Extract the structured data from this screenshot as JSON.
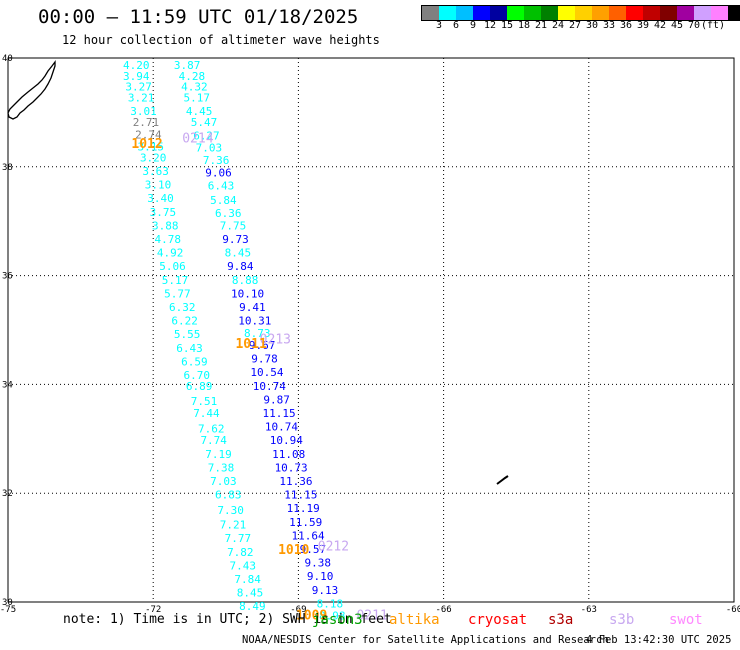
{
  "header": {
    "title": "00:00 – 11:59 UTC 01/18/2025",
    "subtitle": "12 hour collection of altimeter wave heights"
  },
  "colorbar": {
    "colors": [
      "#808080",
      "#00ffff",
      "#00bfff",
      "#0000ff",
      "#0000a0",
      "#00ff00",
      "#00c000",
      "#008000",
      "#ffff00",
      "#ffd000",
      "#ffa000",
      "#ff6000",
      "#ff0000",
      "#c00000",
      "#800000",
      "#a000a0",
      "#d0a0ff",
      "#ff80ff",
      "#000000"
    ],
    "labels": [
      "3",
      "6",
      "9",
      "12",
      "15",
      "18",
      "21",
      "24",
      "27",
      "30",
      "33",
      "36",
      "39",
      "42",
      "45",
      "70"
    ],
    "unit": "(ft)"
  },
  "map": {
    "lon_ticks": [
      "-75",
      "-72",
      "-69",
      "-66",
      "-63",
      "-60"
    ],
    "lat_ticks": [
      "40",
      "38",
      "36",
      "34",
      "32",
      "30"
    ]
  },
  "chart_data": {
    "type": "scatter",
    "lon_range": [
      -75,
      -60
    ],
    "lat_range": [
      30,
      40
    ],
    "units": "ft",
    "tracks": [
      {
        "name": "track-west",
        "points": [
          {
            "lon": -72.35,
            "lat": 39.8,
            "v": "4.20"
          },
          {
            "lon": -72.35,
            "lat": 39.6,
            "v": "3.94"
          },
          {
            "lon": -72.3,
            "lat": 39.4,
            "v": "3.27"
          },
          {
            "lon": -72.25,
            "lat": 39.2,
            "v": "3.21"
          },
          {
            "lon": -72.2,
            "lat": 38.95,
            "v": "3.01"
          },
          {
            "lon": -72.15,
            "lat": 38.75,
            "v": "2.71"
          },
          {
            "lon": -72.1,
            "lat": 38.52,
            "v": "2.74"
          },
          {
            "lon": -72.05,
            "lat": 38.3,
            "v": "3.15"
          },
          {
            "lon": -72.0,
            "lat": 38.1,
            "v": "3.20"
          },
          {
            "lon": -71.95,
            "lat": 37.85,
            "v": "3.63"
          },
          {
            "lon": -71.9,
            "lat": 37.6,
            "v": "3.10"
          },
          {
            "lon": -71.85,
            "lat": 37.35,
            "v": "3.40"
          },
          {
            "lon": -71.8,
            "lat": 37.1,
            "v": "3.75"
          },
          {
            "lon": -71.75,
            "lat": 36.85,
            "v": "3.88"
          },
          {
            "lon": -71.7,
            "lat": 36.6,
            "v": "4.78"
          },
          {
            "lon": -71.65,
            "lat": 36.35,
            "v": "4.92"
          },
          {
            "lon": -71.6,
            "lat": 36.1,
            "v": "5.06"
          },
          {
            "lon": -71.55,
            "lat": 35.85,
            "v": "5.17"
          },
          {
            "lon": -71.5,
            "lat": 35.6,
            "v": "5.77"
          },
          {
            "lon": -71.4,
            "lat": 35.35,
            "v": "6.32"
          },
          {
            "lon": -71.35,
            "lat": 35.1,
            "v": "6.22"
          },
          {
            "lon": -71.3,
            "lat": 34.85,
            "v": "5.55"
          },
          {
            "lon": -71.25,
            "lat": 34.6,
            "v": "6.43"
          },
          {
            "lon": -71.15,
            "lat": 34.35,
            "v": "6.59"
          },
          {
            "lon": -71.1,
            "lat": 34.1,
            "v": "6.70"
          },
          {
            "lon": -71.05,
            "lat": 33.9,
            "v": "6.89"
          },
          {
            "lon": -70.95,
            "lat": 33.62,
            "v": "7.51"
          },
          {
            "lon": -70.9,
            "lat": 33.4,
            "v": "7.44"
          },
          {
            "lon": -70.8,
            "lat": 33.12,
            "v": "7.62"
          },
          {
            "lon": -70.75,
            "lat": 32.9,
            "v": "7.74"
          },
          {
            "lon": -70.65,
            "lat": 32.65,
            "v": "7.19"
          },
          {
            "lon": -70.6,
            "lat": 32.4,
            "v": "7.38"
          },
          {
            "lon": -70.55,
            "lat": 32.15,
            "v": "7.03"
          },
          {
            "lon": -70.45,
            "lat": 31.9,
            "v": "6.83"
          },
          {
            "lon": -70.4,
            "lat": 31.62,
            "v": "7.30"
          },
          {
            "lon": -70.35,
            "lat": 31.35,
            "v": "7.21"
          },
          {
            "lon": -70.25,
            "lat": 31.1,
            "v": "7.77"
          },
          {
            "lon": -70.2,
            "lat": 30.85,
            "v": "7.82"
          },
          {
            "lon": -70.15,
            "lat": 30.6,
            "v": "7.43"
          },
          {
            "lon": -70.05,
            "lat": 30.35,
            "v": "7.84"
          },
          {
            "lon": -70.0,
            "lat": 30.1,
            "v": "8.45"
          },
          {
            "lon": -69.95,
            "lat": 29.85,
            "v": "8.49"
          }
        ]
      },
      {
        "name": "track-east",
        "points": [
          {
            "lon": -71.3,
            "lat": 39.8,
            "v": "3.87"
          },
          {
            "lon": -71.2,
            "lat": 39.6,
            "v": "4.28"
          },
          {
            "lon": -71.15,
            "lat": 39.4,
            "v": "4.32"
          },
          {
            "lon": -71.1,
            "lat": 39.2,
            "v": "5.17"
          },
          {
            "lon": -71.05,
            "lat": 38.95,
            "v": "4.45"
          },
          {
            "lon": -70.95,
            "lat": 38.75,
            "v": "5.47"
          },
          {
            "lon": -70.9,
            "lat": 38.5,
            "v": "6.27"
          },
          {
            "lon": -70.85,
            "lat": 38.28,
            "v": "7.03"
          },
          {
            "lon": -70.7,
            "lat": 38.05,
            "v": "7.36"
          },
          {
            "lon": -70.65,
            "lat": 37.82,
            "v": "9.06"
          },
          {
            "lon": -70.6,
            "lat": 37.58,
            "v": "6.43"
          },
          {
            "lon": -70.55,
            "lat": 37.32,
            "v": "5.84"
          },
          {
            "lon": -70.45,
            "lat": 37.08,
            "v": "6.36"
          },
          {
            "lon": -70.35,
            "lat": 36.85,
            "v": "7.75"
          },
          {
            "lon": -70.3,
            "lat": 36.6,
            "v": "9.73"
          },
          {
            "lon": -70.25,
            "lat": 36.35,
            "v": "8.45"
          },
          {
            "lon": -70.2,
            "lat": 36.1,
            "v": "9.84"
          },
          {
            "lon": -70.1,
            "lat": 35.85,
            "v": "8.88"
          },
          {
            "lon": -70.05,
            "lat": 35.6,
            "v": "10.10"
          },
          {
            "lon": -69.95,
            "lat": 35.35,
            "v": "9.41"
          },
          {
            "lon": -69.9,
            "lat": 35.1,
            "v": "10.31"
          },
          {
            "lon": -69.85,
            "lat": 34.87,
            "v": "8.73"
          },
          {
            "lon": -69.75,
            "lat": 34.65,
            "v": "9.67"
          },
          {
            "lon": -69.7,
            "lat": 34.4,
            "v": "9.78"
          },
          {
            "lon": -69.65,
            "lat": 34.15,
            "v": "10.54"
          },
          {
            "lon": -69.6,
            "lat": 33.9,
            "v": "10.74"
          },
          {
            "lon": -69.45,
            "lat": 33.65,
            "v": "9.87"
          },
          {
            "lon": -69.4,
            "lat": 33.4,
            "v": "11.15"
          },
          {
            "lon": -69.35,
            "lat": 33.15,
            "v": "10.74"
          },
          {
            "lon": -69.25,
            "lat": 32.9,
            "v": "10.94"
          },
          {
            "lon": -69.2,
            "lat": 32.65,
            "v": "11.08"
          },
          {
            "lon": -69.15,
            "lat": 32.4,
            "v": "10.73"
          },
          {
            "lon": -69.05,
            "lat": 32.15,
            "v": "11.36"
          },
          {
            "lon": -68.95,
            "lat": 31.9,
            "v": "11.15"
          },
          {
            "lon": -68.9,
            "lat": 31.65,
            "v": "11.19"
          },
          {
            "lon": -68.85,
            "lat": 31.4,
            "v": "11.59"
          },
          {
            "lon": -68.8,
            "lat": 31.15,
            "v": "11.64"
          },
          {
            "lon": -68.7,
            "lat": 30.9,
            "v": "9.57"
          },
          {
            "lon": -68.6,
            "lat": 30.65,
            "v": "9.38"
          },
          {
            "lon": -68.55,
            "lat": 30.4,
            "v": "9.10"
          },
          {
            "lon": -68.45,
            "lat": 30.15,
            "v": "9.13"
          },
          {
            "lon": -68.35,
            "lat": 29.9,
            "v": "8.18"
          },
          {
            "lon": -68.3,
            "lat": 29.68,
            "v": "8.98"
          }
        ]
      }
    ],
    "time_labels": [
      {
        "lon": -71.4,
        "lat": 38.45,
        "v": "0214"
      },
      {
        "lon": -69.8,
        "lat": 34.75,
        "v": "0213"
      },
      {
        "lon": -68.6,
        "lat": 30.95,
        "v": "0212"
      },
      {
        "lon": -67.8,
        "lat": 29.68,
        "v": "0211"
      }
    ],
    "cycle_labels": [
      {
        "lon": -72.45,
        "lat": 38.35,
        "v": "1012"
      },
      {
        "lon": -70.3,
        "lat": 34.67,
        "v": "1011"
      },
      {
        "lon": -69.42,
        "lat": 30.88,
        "v": "1010"
      },
      {
        "lon": -69.05,
        "lat": 29.68,
        "v": "1009"
      }
    ]
  },
  "legend": {
    "note": "note: 1) Time is in UTC; 2) SWH is in feet",
    "satellites": [
      {
        "name": "jason3",
        "color": "#00a000"
      },
      {
        "name": "altika",
        "color": "#ff9900"
      },
      {
        "name": "cryosat",
        "color": "#ff0000"
      },
      {
        "name": "s3a",
        "color": "#b00000"
      },
      {
        "name": "s3b",
        "color": "#c8a8f0"
      },
      {
        "name": "swot",
        "color": "#ff88ff"
      }
    ]
  },
  "footer": {
    "credit": "NOAA/NESDIS Center for Satellite Applications and Research",
    "timestamp": "4 Feb 13:42:30 UTC 2025"
  }
}
